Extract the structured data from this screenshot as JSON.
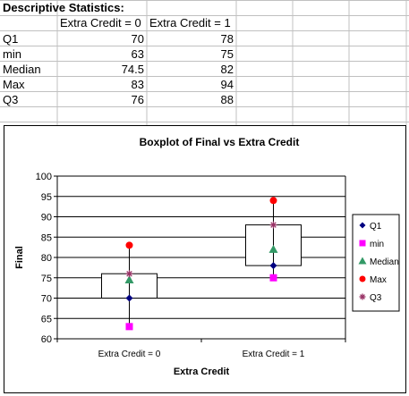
{
  "sheet": {
    "title": "Descriptive Statistics:",
    "col_headers": [
      "Extra Credit = 0",
      "Extra Credit = 1"
    ],
    "rows": [
      {
        "label": "Q1",
        "values": [
          "70",
          "78"
        ]
      },
      {
        "label": "min",
        "values": [
          "63",
          "75"
        ]
      },
      {
        "label": "Median",
        "values": [
          "74.5",
          "82"
        ]
      },
      {
        "label": "Max",
        "values": [
          "83",
          "94"
        ]
      },
      {
        "label": "Q3",
        "values": [
          "76",
          "88"
        ]
      }
    ]
  },
  "chart_data": {
    "type": "boxplot",
    "title": "Boxplot of Final vs Extra Credit",
    "xlabel": "Extra Credit",
    "ylabel": "Final",
    "ylim": [
      60,
      100
    ],
    "yticks": [
      "60",
      "65",
      "70",
      "75",
      "80",
      "85",
      "90",
      "95",
      "100"
    ],
    "categories": [
      "Extra Credit = 0",
      "Extra Credit = 1"
    ],
    "grid": true,
    "legend_position": "right",
    "series": [
      {
        "name": "Q1",
        "marker": "diamond",
        "color": "#000080",
        "values": [
          70,
          78
        ]
      },
      {
        "name": "min",
        "marker": "square",
        "color": "#ff00ff",
        "values": [
          63,
          75
        ]
      },
      {
        "name": "Median",
        "marker": "triangle",
        "color": "#339966",
        "values": [
          74.5,
          82
        ]
      },
      {
        "name": "Max",
        "marker": "circle",
        "color": "#ff0000",
        "values": [
          83,
          94
        ]
      },
      {
        "name": "Q3",
        "marker": "star",
        "color": "#993366",
        "values": [
          76,
          88
        ]
      }
    ]
  }
}
